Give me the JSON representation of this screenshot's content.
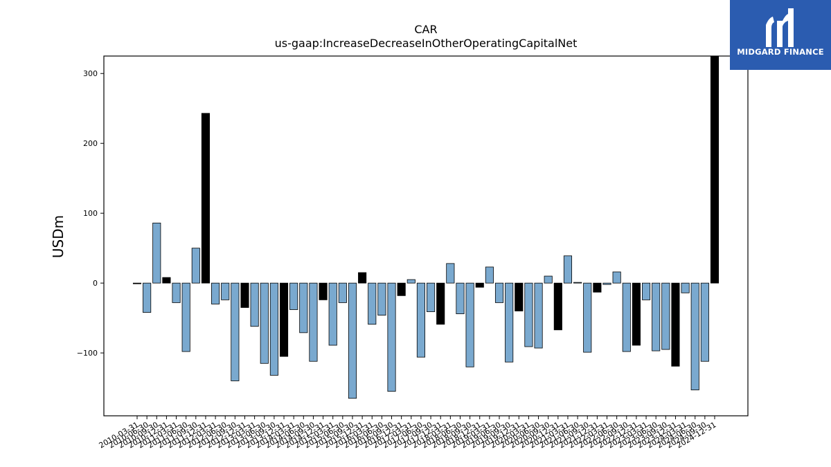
{
  "logo": {
    "text": "MIDGARD FINANCE"
  },
  "chart_data": {
    "type": "bar",
    "title": "CAR",
    "subtitle": "us-gaap:IncreaseDecreaseInOtherOperatingCapitalNet",
    "ylabel": "USDm",
    "xlabel": "",
    "ylim": [
      -190,
      325
    ],
    "yticks": [
      -100,
      0,
      100,
      200,
      300
    ],
    "grid": false,
    "colors": {
      "quarterly": "#7aa9cf",
      "annual": "#000000"
    },
    "categories": [
      "2010-03-31",
      "2010-06-30",
      "2010-09-30",
      "2010-12-31",
      "2011-03-31",
      "2011-06-30",
      "2011-09-30",
      "2011-12-31",
      "2012-03-31",
      "2012-06-30",
      "2012-09-30",
      "2012-12-31",
      "2013-03-31",
      "2013-06-30",
      "2013-09-30",
      "2013-12-31",
      "2014-03-31",
      "2014-06-30",
      "2014-09-30",
      "2014-12-31",
      "2015-03-31",
      "2015-06-30",
      "2015-09-30",
      "2015-12-31",
      "2016-03-31",
      "2016-06-30",
      "2016-09-30",
      "2016-12-31",
      "2017-03-31",
      "2017-06-30",
      "2017-09-30",
      "2017-12-31",
      "2018-03-31",
      "2018-06-30",
      "2018-09-30",
      "2018-12-31",
      "2019-03-31",
      "2019-06-30",
      "2019-09-30",
      "2019-12-31",
      "2020-03-31",
      "2020-06-30",
      "2020-09-30",
      "2020-12-31",
      "2021-03-31",
      "2021-06-30",
      "2021-09-30",
      "2021-12-31",
      "2022-03-31",
      "2022-06-30",
      "2022-09-30",
      "2022-12-31",
      "2023-03-31",
      "2023-06-30",
      "2023-09-30",
      "2023-12-31",
      "2024-03-31",
      "2024-06-30",
      "2024-09-30",
      "2024-12-31"
    ],
    "values": [
      -1,
      -42,
      86,
      8,
      -28,
      -98,
      50,
      243,
      -30,
      -24,
      -140,
      -35,
      -62,
      -115,
      -132,
      -105,
      -38,
      -71,
      -112,
      -24,
      -89,
      -28,
      -165,
      15,
      -59,
      -46,
      -155,
      -18,
      5,
      -106,
      -41,
      -59,
      28,
      -44,
      -120,
      -6,
      23,
      -28,
      -113,
      -40,
      -91,
      -93,
      10,
      -67,
      39,
      1,
      -99,
      -13,
      -2,
      16,
      -98,
      -89,
      -24,
      -97,
      -95,
      -119,
      -14,
      -153,
      -112,
      325
    ],
    "annual_flags": [
      true,
      false,
      false,
      true,
      false,
      false,
      false,
      true,
      false,
      false,
      false,
      true,
      false,
      false,
      false,
      true,
      false,
      false,
      false,
      true,
      false,
      false,
      false,
      true,
      false,
      false,
      false,
      true,
      false,
      false,
      false,
      true,
      false,
      false,
      false,
      true,
      false,
      false,
      false,
      true,
      false,
      false,
      false,
      true,
      false,
      false,
      false,
      true,
      false,
      false,
      false,
      true,
      false,
      false,
      false,
      true,
      false,
      false,
      false,
      true
    ]
  }
}
